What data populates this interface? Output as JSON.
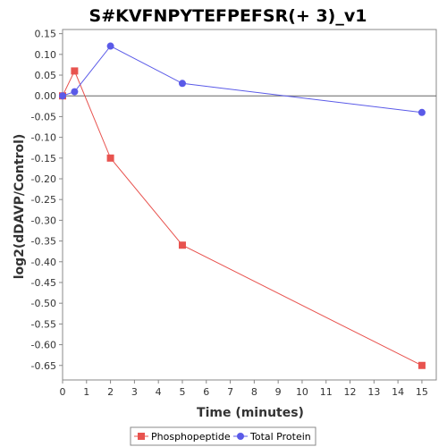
{
  "chart_data": {
    "type": "line",
    "title": "S#KVFNPYTEFPEFSR(+ 3)_v1",
    "xlabel": "Time (minutes)",
    "ylabel": "log2(dDAVP/Control)",
    "xlim": [
      0,
      15.6
    ],
    "ylim": [
      -0.685,
      0.16
    ],
    "x_ticks": [
      0,
      1,
      2,
      3,
      4,
      5,
      6,
      7,
      8,
      9,
      10,
      11,
      12,
      13,
      14,
      15
    ],
    "y_ticks": [
      0.15,
      0.1,
      0.05,
      0.0,
      -0.05,
      -0.1,
      -0.15,
      -0.2,
      -0.25,
      -0.3,
      -0.35,
      -0.4,
      -0.45,
      -0.5,
      -0.55,
      -0.6,
      -0.65
    ],
    "y_tick_labels": [
      "0.15",
      "0.10",
      "0.05",
      "0.00",
      "-0.05",
      "-0.10",
      "-0.15",
      "-0.20",
      "-0.25",
      "-0.30",
      "-0.35",
      "-0.40",
      "-0.45",
      "-0.50",
      "-0.55",
      "-0.60",
      "-0.65"
    ],
    "zero_line": true,
    "grid": false,
    "legend_position": "bottom",
    "series": [
      {
        "name": "Phosphopeptide",
        "marker": "square",
        "color": "#e8534f",
        "x": [
          0,
          0.5,
          2,
          5,
          15
        ],
        "y": [
          0.0,
          0.06,
          -0.15,
          -0.36,
          -0.65
        ]
      },
      {
        "name": "Total Protein",
        "marker": "circle",
        "color": "#5a5ae8",
        "x": [
          0,
          0.5,
          2,
          5,
          15
        ],
        "y": [
          0.0,
          0.01,
          0.12,
          0.03,
          -0.04
        ]
      }
    ]
  }
}
